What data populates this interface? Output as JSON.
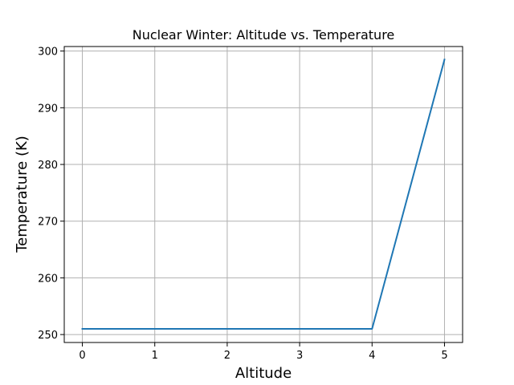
{
  "chart_data": {
    "type": "line",
    "title": "Nuclear Winter: Altitude vs. Temperature",
    "xlabel": "Altitude",
    "ylabel": "Temperature (K)",
    "xlim": [
      -0.25,
      5.25
    ],
    "ylim": [
      248.6,
      300.8
    ],
    "x_ticks": [
      0,
      1,
      2,
      3,
      4,
      5
    ],
    "y_ticks": [
      250,
      260,
      270,
      280,
      290,
      300
    ],
    "grid": true,
    "series": [
      {
        "color": "#1f77b4",
        "x": [
          0,
          1,
          2,
          3,
          4,
          5
        ],
        "y": [
          251,
          251,
          251,
          251,
          251,
          298.5
        ]
      }
    ]
  }
}
